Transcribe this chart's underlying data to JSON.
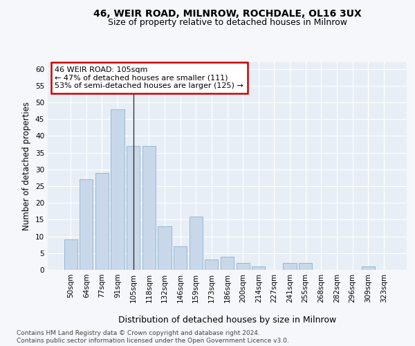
{
  "title1": "46, WEIR ROAD, MILNROW, ROCHDALE, OL16 3UX",
  "title2": "Size of property relative to detached houses in Milnrow",
  "xlabel": "Distribution of detached houses by size in Milnrow",
  "ylabel": "Number of detached properties",
  "categories": [
    "50sqm",
    "64sqm",
    "77sqm",
    "91sqm",
    "105sqm",
    "118sqm",
    "132sqm",
    "146sqm",
    "159sqm",
    "173sqm",
    "186sqm",
    "200sqm",
    "214sqm",
    "227sqm",
    "241sqm",
    "255sqm",
    "268sqm",
    "282sqm",
    "296sqm",
    "309sqm",
    "323sqm"
  ],
  "values": [
    9,
    27,
    29,
    48,
    37,
    37,
    13,
    7,
    16,
    3,
    4,
    2,
    1,
    0,
    2,
    2,
    0,
    0,
    0,
    1,
    0
  ],
  "highlight_index": 4,
  "bar_color": "#c8d8ea",
  "bar_edge_color": "#8ab0cc",
  "highlight_line_color": "#333333",
  "annotation_text": "46 WEIR ROAD: 105sqm\n← 47% of detached houses are smaller (111)\n53% of semi-detached houses are larger (125) →",
  "annotation_box_facecolor": "#ffffff",
  "annotation_box_edgecolor": "#cc0000",
  "ylim": [
    0,
    62
  ],
  "yticks": [
    0,
    5,
    10,
    15,
    20,
    25,
    30,
    35,
    40,
    45,
    50,
    55,
    60
  ],
  "plot_bg_color": "#e8eef5",
  "fig_bg_color": "#f5f7fa",
  "grid_color": "#ffffff",
  "footer": "Contains HM Land Registry data © Crown copyright and database right 2024.\nContains public sector information licensed under the Open Government Licence v3.0.",
  "title_fontsize": 10,
  "subtitle_fontsize": 9,
  "tick_fontsize": 7.5,
  "ylabel_fontsize": 8.5,
  "xlabel_fontsize": 9,
  "footer_fontsize": 6.5,
  "annot_fontsize": 8
}
